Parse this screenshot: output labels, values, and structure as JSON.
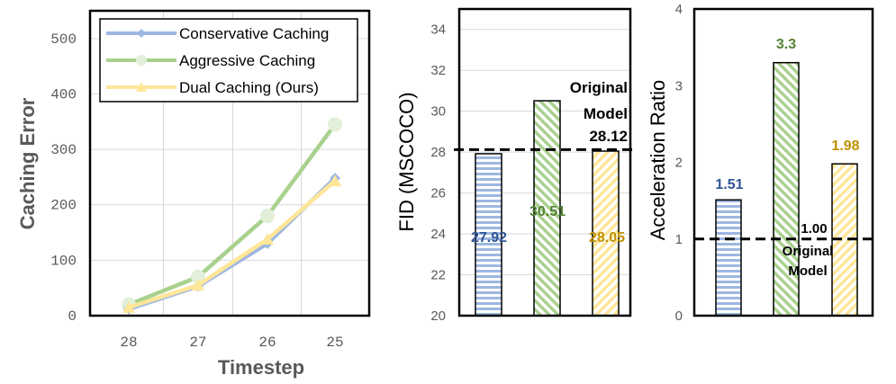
{
  "colors": {
    "conservative": "#9DB7E1",
    "aggressive": "#A9D18E",
    "dual": "#FFE699",
    "conservative_label": "#2F5597",
    "aggressive_label": "#548235",
    "dual_label": "#BF9000",
    "grid": "#D9D9D9",
    "frame": "#000000"
  },
  "chart_data": [
    {
      "type": "line",
      "title": "",
      "xlabel": "Timestep",
      "ylabel": "Caching Error",
      "categories": [
        "28",
        "27",
        "26",
        "25"
      ],
      "ylim": [
        0,
        550
      ],
      "yticks": [
        "0",
        "100",
        "200",
        "300",
        "400",
        "500"
      ],
      "yticks_values": [
        0,
        100,
        200,
        300,
        400,
        500
      ],
      "grid": true,
      "legend_position": "top",
      "series": [
        {
          "name": "Conservative Caching",
          "color_key": "conservative",
          "marker": "diamond",
          "values": [
            12,
            53,
            130,
            248
          ]
        },
        {
          "name": "Aggressive Caching",
          "color_key": "aggressive",
          "marker": "circle",
          "values": [
            20,
            70,
            180,
            345
          ]
        },
        {
          "name": "Dual Caching (Ours)",
          "color_key": "dual",
          "marker": "triangle",
          "values": [
            15,
            55,
            138,
            243
          ]
        }
      ]
    },
    {
      "type": "bar",
      "xlabel": "",
      "ylabel": "FID (MSCOCO)",
      "categories": [
        "Conservative Caching",
        "Aggressive Caching",
        "Dual Caching (Ours)"
      ],
      "values": [
        27.92,
        30.51,
        28.05
      ],
      "value_labels": [
        "27.92",
        "30.51",
        "28.05"
      ],
      "ylim": [
        20,
        35
      ],
      "yticks": [
        "20",
        "22",
        "24",
        "26",
        "28",
        "30",
        "32",
        "34"
      ],
      "yticks_values": [
        20,
        22,
        24,
        26,
        28,
        30,
        32,
        34
      ],
      "grid": true,
      "reference_line": {
        "value": 28.12,
        "label": "28.12",
        "text_line1": "Original",
        "text_line2": "Model"
      }
    },
    {
      "type": "bar",
      "xlabel": "",
      "ylabel": "Acceleration Ratio",
      "categories": [
        "Conservative Caching",
        "Aggressive Caching",
        "Dual Caching (Ours)"
      ],
      "values": [
        1.51,
        3.3,
        1.98
      ],
      "value_labels": [
        "1.51",
        "3.3",
        "1.98"
      ],
      "ylim": [
        0,
        4
      ],
      "yticks": [
        "0",
        "1",
        "2",
        "3",
        "4"
      ],
      "yticks_values": [
        0,
        1,
        2,
        3,
        4
      ],
      "grid": false,
      "reference_line": {
        "value": 1.0,
        "label": "1.00",
        "text_line1": "Original",
        "text_line2": "Model"
      }
    }
  ]
}
